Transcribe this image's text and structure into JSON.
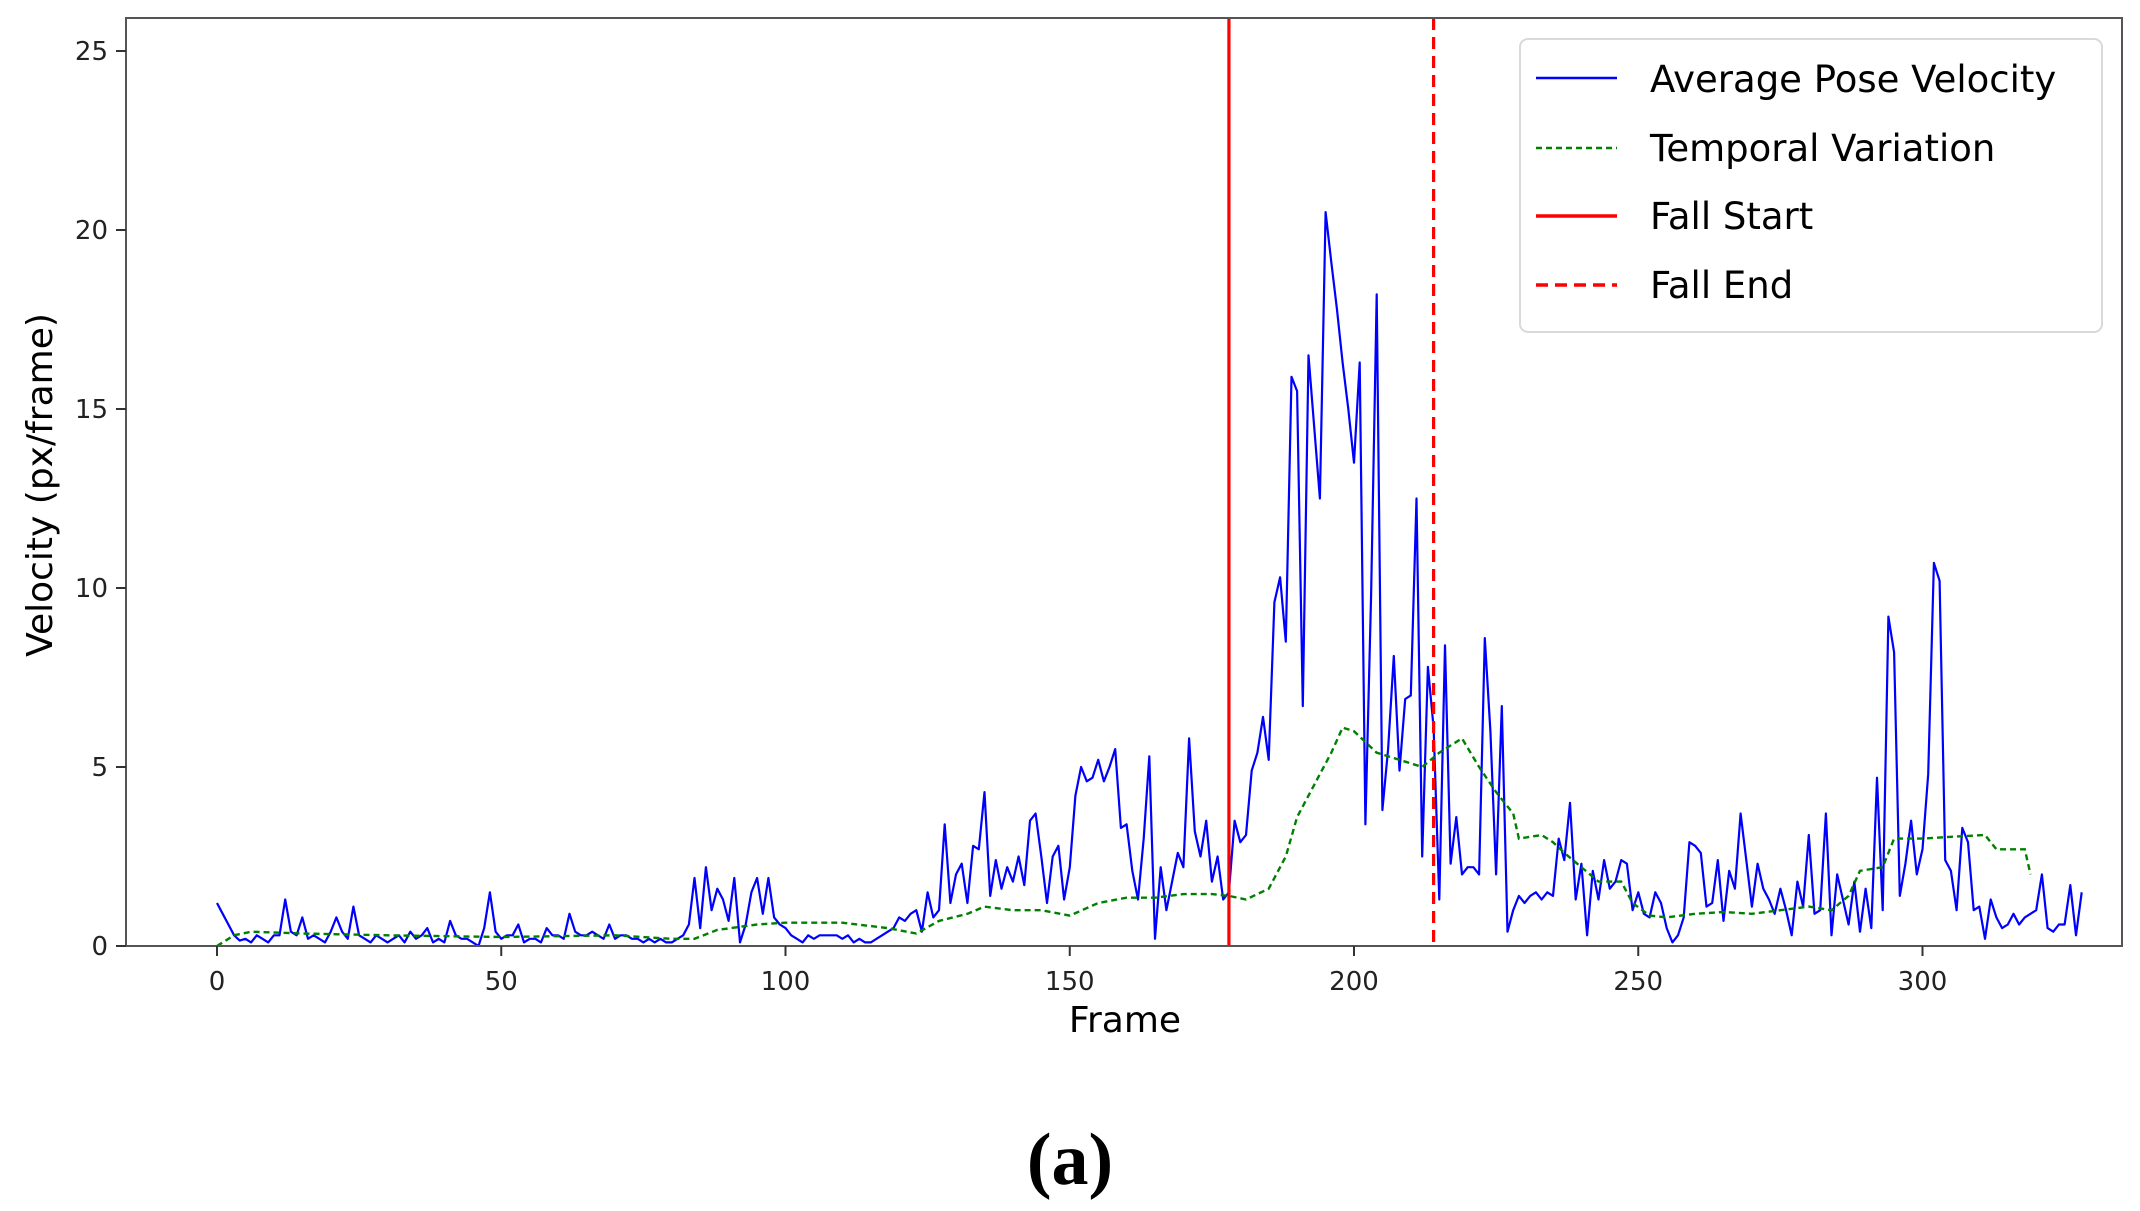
{
  "caption": "(a)",
  "chart_data": {
    "type": "line",
    "title": "",
    "xlabel": "Frame",
    "ylabel": "Velocity (px/frame)",
    "xlim": [
      -16,
      336
    ],
    "ylim": [
      0,
      26
    ],
    "xticks": [
      0,
      50,
      100,
      150,
      200,
      250,
      300
    ],
    "yticks": [
      0,
      5,
      10,
      15,
      20,
      25
    ],
    "grid": false,
    "legend_position": "upper right",
    "legend": [
      "Average Pose Velocity",
      "Temporal Variation",
      "Fall Start",
      "Fall End"
    ],
    "colors": {
      "velocity": "#0000ff",
      "temporal": "#008000",
      "fall_start": "#ff0000",
      "fall_end": "#ff0000"
    },
    "vlines": [
      {
        "name": "Fall Start",
        "x": 178,
        "style": "solid",
        "color": "#ff0000"
      },
      {
        "name": "Fall End",
        "x": 214,
        "style": "dashed",
        "color": "#ff0000"
      }
    ],
    "series": [
      {
        "name": "Average Pose Velocity",
        "style": "solid",
        "x_start": 0,
        "values": [
          1.2,
          0.9,
          0.6,
          0.3,
          0.15,
          0.2,
          0.1,
          0.3,
          0.2,
          0.1,
          0.3,
          0.3,
          1.3,
          0.4,
          0.3,
          0.8,
          0.2,
          0.3,
          0.2,
          0.1,
          0.4,
          0.8,
          0.4,
          0.2,
          1.1,
          0.3,
          0.2,
          0.1,
          0.3,
          0.2,
          0.1,
          0.2,
          0.3,
          0.1,
          0.4,
          0.2,
          0.3,
          0.5,
          0.1,
          0.2,
          0.1,
          0.7,
          0.3,
          0.2,
          0.2,
          0.1,
          0.0,
          0.5,
          1.5,
          0.4,
          0.2,
          0.3,
          0.3,
          0.6,
          0.1,
          0.2,
          0.2,
          0.1,
          0.5,
          0.3,
          0.3,
          0.2,
          0.9,
          0.4,
          0.3,
          0.3,
          0.4,
          0.3,
          0.2,
          0.6,
          0.2,
          0.3,
          0.3,
          0.2,
          0.2,
          0.1,
          0.2,
          0.1,
          0.2,
          0.1,
          0.1,
          0.2,
          0.3,
          0.6,
          1.9,
          0.5,
          2.2,
          1.0,
          1.6,
          1.3,
          0.7,
          1.9,
          0.1,
          0.6,
          1.5,
          1.9,
          0.9,
          1.9,
          0.8,
          0.6,
          0.5,
          0.3,
          0.2,
          0.1,
          0.3,
          0.2,
          0.3,
          0.3,
          0.3,
          0.3,
          0.2,
          0.3,
          0.1,
          0.2,
          0.1,
          0.1,
          0.2,
          0.3,
          0.4,
          0.5,
          0.8,
          0.7,
          0.9,
          1.0,
          0.4,
          1.5,
          0.8,
          1.0,
          3.4,
          1.2,
          2.0,
          2.3,
          1.2,
          2.8,
          2.7,
          4.3,
          1.4,
          2.4,
          1.6,
          2.2,
          1.8,
          2.5,
          1.7,
          3.5,
          3.7,
          2.5,
          1.2,
          2.5,
          2.8,
          1.3,
          2.2,
          4.2,
          5.0,
          4.6,
          4.7,
          5.2,
          4.6,
          5.0,
          5.5,
          3.3,
          3.4,
          2.1,
          1.3,
          3.0,
          5.3,
          0.2,
          2.2,
          1.0,
          1.8,
          2.6,
          2.2,
          5.8,
          3.2,
          2.5,
          3.5,
          1.8,
          2.5,
          1.3,
          1.5,
          3.5,
          2.9,
          3.1,
          4.9,
          5.4,
          6.4,
          5.2,
          9.6,
          10.3,
          8.5,
          15.9,
          15.5,
          6.7,
          16.5,
          14.5,
          12.5,
          20.5,
          19.1,
          17.8,
          16.3,
          15.0,
          13.5,
          16.3,
          3.4,
          9.8,
          18.2,
          3.8,
          5.5,
          8.1,
          4.9,
          6.9,
          7.0,
          12.5,
          2.5,
          7.8,
          6.1,
          1.3,
          8.4,
          2.3,
          3.6,
          2.0,
          2.2,
          2.2,
          2.0,
          8.6,
          6.0,
          2.0,
          6.7,
          0.4,
          1.0,
          1.4,
          1.2,
          1.4,
          1.5,
          1.3,
          1.5,
          1.4,
          3.0,
          2.4,
          4.0,
          1.3,
          2.3,
          0.3,
          2.1,
          1.3,
          2.4,
          1.6,
          1.8,
          2.4,
          2.3,
          1.0,
          1.5,
          0.9,
          0.8,
          1.5,
          1.2,
          0.5,
          0.1,
          0.3,
          0.8,
          2.9,
          2.8,
          2.6,
          1.1,
          1.2,
          2.4,
          0.7,
          2.1,
          1.6,
          3.7,
          2.4,
          1.1,
          2.3,
          1.6,
          1.3,
          0.9,
          1.6,
          1.0,
          0.3,
          1.8,
          1.1,
          3.1,
          0.9,
          1.0,
          3.7,
          0.3,
          2.0,
          1.3,
          0.6,
          1.8,
          0.4,
          1.6,
          0.5,
          4.7,
          1.0,
          9.2,
          8.2,
          1.4,
          2.3,
          3.5,
          2.0,
          2.7,
          4.8,
          10.7,
          10.2,
          2.4,
          2.1,
          1.0,
          3.3,
          2.9,
          1.0,
          1.1,
          0.2,
          1.3,
          0.8,
          0.5,
          0.6,
          0.9,
          0.6,
          0.8,
          0.9,
          1.0,
          2.0,
          0.5,
          0.4,
          0.6,
          0.6,
          1.7,
          0.3,
          1.5
        ]
      },
      {
        "name": "Temporal Variation",
        "style": "dashed",
        "x_start": 0,
        "values_keypoints": [
          [
            0,
            0.0
          ],
          [
            3,
            0.3
          ],
          [
            6,
            0.4
          ],
          [
            15,
            0.35
          ],
          [
            30,
            0.3
          ],
          [
            50,
            0.25
          ],
          [
            70,
            0.3
          ],
          [
            80,
            0.2
          ],
          [
            84,
            0.2
          ],
          [
            88,
            0.45
          ],
          [
            95,
            0.6
          ],
          [
            100,
            0.65
          ],
          [
            110,
            0.65
          ],
          [
            118,
            0.5
          ],
          [
            123,
            0.35
          ],
          [
            127,
            0.7
          ],
          [
            132,
            0.9
          ],
          [
            135,
            1.1
          ],
          [
            140,
            1.0
          ],
          [
            145,
            1.0
          ],
          [
            150,
            0.85
          ],
          [
            155,
            1.2
          ],
          [
            160,
            1.35
          ],
          [
            165,
            1.35
          ],
          [
            170,
            1.45
          ],
          [
            175,
            1.45
          ],
          [
            178,
            1.4
          ],
          [
            181,
            1.3
          ],
          [
            185,
            1.6
          ],
          [
            188,
            2.5
          ],
          [
            190,
            3.6
          ],
          [
            193,
            4.5
          ],
          [
            196,
            5.4
          ],
          [
            198,
            6.1
          ],
          [
            200,
            6.0
          ],
          [
            204,
            5.4
          ],
          [
            208,
            5.2
          ],
          [
            212,
            5.0
          ],
          [
            215,
            5.4
          ],
          [
            217,
            5.6
          ],
          [
            219,
            5.8
          ],
          [
            222,
            5.0
          ],
          [
            225,
            4.3
          ],
          [
            228,
            3.7
          ],
          [
            229,
            3.0
          ],
          [
            233,
            3.1
          ],
          [
            235,
            2.9
          ],
          [
            237,
            2.6
          ],
          [
            240,
            2.2
          ],
          [
            243,
            1.8
          ],
          [
            247,
            1.8
          ],
          [
            249,
            1.2
          ],
          [
            252,
            0.85
          ],
          [
            255,
            0.8
          ],
          [
            260,
            0.9
          ],
          [
            265,
            0.95
          ],
          [
            270,
            0.9
          ],
          [
            275,
            1.0
          ],
          [
            280,
            1.1
          ],
          [
            284,
            1.0
          ],
          [
            287,
            1.4
          ],
          [
            289,
            2.1
          ],
          [
            293,
            2.2
          ],
          [
            295,
            3.0
          ],
          [
            300,
            3.0
          ],
          [
            305,
            3.05
          ],
          [
            311,
            3.1
          ],
          [
            313,
            2.7
          ],
          [
            316,
            2.7
          ],
          [
            318,
            2.7
          ],
          [
            319,
            2.0
          ]
        ]
      }
    ]
  }
}
